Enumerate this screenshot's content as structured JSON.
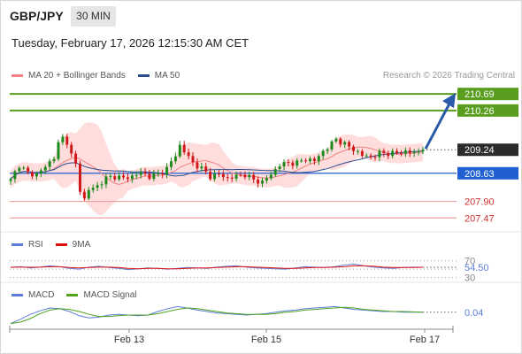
{
  "header": {
    "pair": "GBP/JPY",
    "timeframe": "30 MIN",
    "datetime": "Tuesday, February 17, 2026 12:15:30 AM CET"
  },
  "legend": {
    "ma20_label": "MA 20 + Bollinger Bands",
    "ma50_label": "MA 50",
    "credit": "Research © 2026 Trading Central"
  },
  "colors": {
    "bollinger": "#ffb3b3",
    "ma20": "#f28080",
    "ma50": "#2a4d8f",
    "resistance": "#5a9e1f",
    "support_blue": "#1f5fd1",
    "support_red": "#f0a0a0",
    "arrow": "#2a5aa8",
    "rsi": "#5b7fd6",
    "rsi_ma": "#e01010",
    "macd": "#5b7fd6",
    "macd_signal": "#4fa31f",
    "candle_up": "#1b8a1b",
    "candle_down": "#d01818"
  },
  "chart_data": [
    {
      "type": "candlestick",
      "ylim": [
        207.2,
        210.9
      ],
      "x_ticks": [
        "Feb 13",
        "Feb 15",
        "Feb 17"
      ],
      "price_labels": [
        {
          "value": "210.69",
          "style": "green"
        },
        {
          "value": "210.26",
          "style": "green"
        },
        {
          "value": "209.24",
          "style": "dark"
        },
        {
          "value": "208.63",
          "style": "blue"
        },
        {
          "value": "207.90",
          "style": "red-text"
        },
        {
          "value": "207.47",
          "style": "red-text"
        }
      ],
      "levels": [
        {
          "value": 210.69,
          "kind": "resistance"
        },
        {
          "value": 210.26,
          "kind": "resistance"
        },
        {
          "value": 208.63,
          "kind": "pivot"
        },
        {
          "value": 207.9,
          "kind": "support"
        },
        {
          "value": 207.47,
          "kind": "support"
        }
      ],
      "current": 209.24,
      "arrow_target": 210.69,
      "anchors": [
        [
          0,
          208.45
        ],
        [
          2,
          208.85
        ],
        [
          4,
          208.62
        ],
        [
          6,
          208.6
        ],
        [
          8,
          208.8
        ],
        [
          10,
          209.05
        ],
        [
          11,
          209.4
        ],
        [
          12,
          209.55
        ],
        [
          13,
          209.45
        ],
        [
          14,
          209.1
        ],
        [
          15,
          208.85
        ],
        [
          16,
          208.2
        ],
        [
          17,
          207.95
        ],
        [
          18,
          208.2
        ],
        [
          20,
          208.3
        ],
        [
          22,
          208.5
        ],
        [
          24,
          208.55
        ],
        [
          26,
          208.5
        ],
        [
          28,
          208.55
        ],
        [
          30,
          208.65
        ],
        [
          32,
          208.55
        ],
        [
          34,
          208.6
        ],
        [
          36,
          208.75
        ],
        [
          38,
          209.1
        ],
        [
          39,
          209.35
        ],
        [
          40,
          209.2
        ],
        [
          42,
          208.9
        ],
        [
          44,
          208.75
        ],
        [
          46,
          208.55
        ],
        [
          48,
          208.6
        ],
        [
          50,
          208.5
        ],
        [
          52,
          208.55
        ],
        [
          54,
          208.6
        ],
        [
          56,
          208.45
        ],
        [
          58,
          208.4
        ],
        [
          60,
          208.6
        ],
        [
          62,
          208.85
        ],
        [
          64,
          208.9
        ],
        [
          66,
          208.9
        ],
        [
          68,
          209.0
        ],
        [
          70,
          208.95
        ],
        [
          72,
          209.2
        ],
        [
          74,
          209.4
        ],
        [
          75,
          209.52
        ],
        [
          77,
          209.38
        ],
        [
          79,
          209.25
        ],
        [
          81,
          209.1
        ],
        [
          83,
          209.05
        ],
        [
          85,
          209.15
        ],
        [
          87,
          209.15
        ],
        [
          89,
          209.15
        ],
        [
          91,
          209.2
        ],
        [
          93,
          209.15
        ],
        [
          95,
          209.24
        ]
      ]
    },
    {
      "type": "line",
      "title": "RSI",
      "series": [
        {
          "name": "RSI"
        },
        {
          "name": "9MA"
        }
      ],
      "ylim": [
        25,
        80
      ],
      "levels": [
        70,
        30
      ],
      "level_labels": [
        "70",
        "30"
      ],
      "value_label": "54.50",
      "rsi": [
        54,
        56,
        53,
        55,
        58,
        56,
        52,
        50,
        55,
        57,
        54,
        52,
        49,
        51,
        53,
        52,
        50,
        52,
        54,
        53,
        52,
        55,
        57,
        58,
        55,
        53,
        52,
        51,
        50,
        53,
        56,
        55,
        54,
        56,
        60,
        62,
        58,
        55,
        53,
        52,
        54,
        55,
        54.5
      ],
      "rsi_ma": [
        55,
        55,
        54.5,
        55,
        56,
        56,
        54,
        53,
        54,
        55,
        55,
        54,
        52,
        51,
        52,
        52,
        51,
        51,
        52,
        53,
        53,
        54,
        55,
        56,
        56,
        55,
        54,
        53,
        52,
        52,
        53,
        54,
        54,
        55,
        56,
        58,
        58,
        57,
        55,
        54,
        54,
        54,
        54.5
      ]
    },
    {
      "type": "line",
      "title": "MACD",
      "series": [
        {
          "name": "MACD"
        },
        {
          "name": "MACD Signal"
        }
      ],
      "ylim": [
        -0.15,
        0.2
      ],
      "value_label": "0.04",
      "macd": [
        -0.12,
        -0.06,
        0.01,
        0.06,
        0.1,
        0.09,
        0.05,
        -0.01,
        -0.04,
        -0.03,
        0.0,
        0.01,
        0.0,
        -0.01,
        0.0,
        0.05,
        0.09,
        0.12,
        0.1,
        0.07,
        0.05,
        0.03,
        0.02,
        0.01,
        0.0,
        0.01,
        0.02,
        0.04,
        0.06,
        0.07,
        0.09,
        0.1,
        0.11,
        0.12,
        0.1,
        0.08,
        0.07,
        0.06,
        0.05,
        0.05,
        0.04,
        0.04,
        0.04
      ],
      "signal": [
        -0.12,
        -0.1,
        -0.05,
        0.02,
        0.07,
        0.09,
        0.08,
        0.05,
        0.01,
        -0.02,
        -0.02,
        -0.01,
        0.0,
        0.0,
        0.0,
        0.02,
        0.05,
        0.08,
        0.1,
        0.09,
        0.07,
        0.05,
        0.03,
        0.02,
        0.01,
        0.01,
        0.01,
        0.02,
        0.04,
        0.05,
        0.07,
        0.08,
        0.09,
        0.1,
        0.11,
        0.1,
        0.08,
        0.07,
        0.06,
        0.05,
        0.05,
        0.045,
        0.04
      ]
    }
  ]
}
